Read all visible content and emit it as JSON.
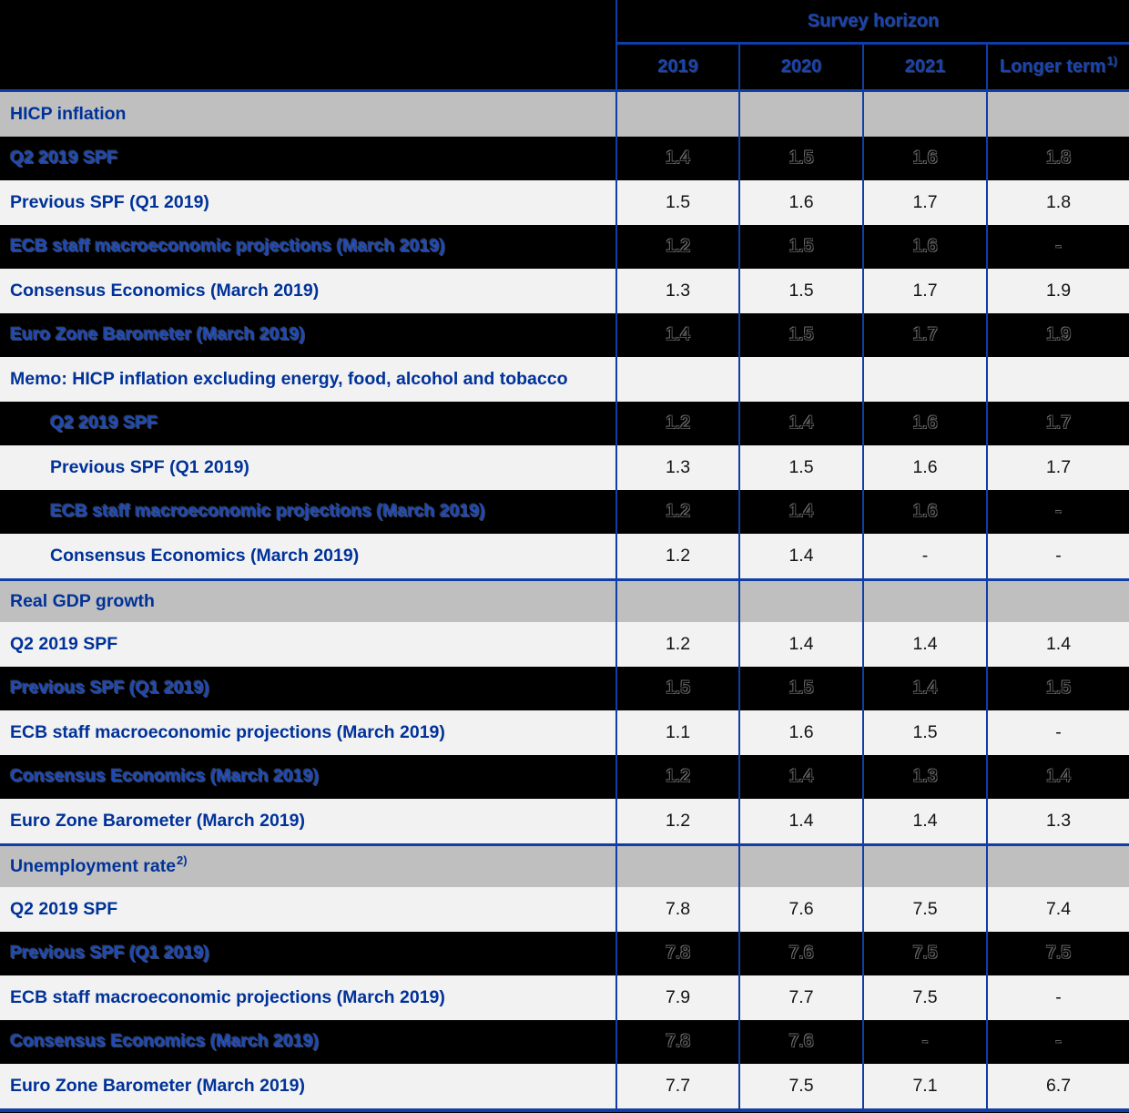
{
  "table_title": "Survey horizon",
  "header": {
    "survey_horizon": "Survey horizon",
    "years": [
      "2019",
      "2020",
      "2021"
    ],
    "longer_term": {
      "label": "Longer term",
      "footnote": "1)"
    }
  },
  "colors": {
    "grid_line_blue": "#103da6",
    "light_row": "#f2f2f2",
    "section_row_gray": "#bfbfbf",
    "label_blue": "#003299",
    "background": "#000000"
  },
  "chart_data": {
    "type": "table",
    "title": "Survey horizon",
    "columns": [
      "2019",
      "2020",
      "2021",
      "Longer term 1)"
    ],
    "sections": [
      {
        "section": "HICP inflation",
        "rows": [
          {
            "label": "Q2 2019 SPF",
            "values": [
              "1.4",
              "1.5",
              "1.6",
              "1.8"
            ]
          },
          {
            "label": "Previous SPF (Q1 2019)",
            "values": [
              "1.5",
              "1.6",
              "1.7",
              "1.8"
            ]
          },
          {
            "label": "ECB staff macroeconomic projections (March 2019)",
            "values": [
              "1.2",
              "1.5",
              "1.6",
              "-"
            ]
          },
          {
            "label": "Consensus Economics (March 2019)",
            "values": [
              "1.3",
              "1.5",
              "1.7",
              "1.9"
            ]
          },
          {
            "label": "Euro Zone Barometer (March 2019)",
            "values": [
              "1.4",
              "1.5",
              "1.7",
              "1.9"
            ]
          }
        ]
      },
      {
        "section": "Memo: HICP inflation excluding energy, food, alcohol and tobacco",
        "rows": [
          {
            "label": "Q2 2019 SPF",
            "values": [
              "1.2",
              "1.4",
              "1.6",
              "1.7"
            ]
          },
          {
            "label": "Previous SPF (Q1 2019)",
            "values": [
              "1.3",
              "1.5",
              "1.6",
              "1.7"
            ]
          },
          {
            "label": "ECB staff macroeconomic projections (March 2019)",
            "values": [
              "1.2",
              "1.4",
              "1.6",
              "-"
            ]
          },
          {
            "label": "Consensus Economics (March 2019)",
            "values": [
              "1.2",
              "1.4",
              "-",
              "-"
            ]
          }
        ]
      },
      {
        "section": "Real GDP growth",
        "rows": [
          {
            "label": "Q2 2019 SPF",
            "values": [
              "1.2",
              "1.4",
              "1.4",
              "1.4"
            ]
          },
          {
            "label": "Previous SPF (Q1 2019)",
            "values": [
              "1.5",
              "1.5",
              "1.4",
              "1.5"
            ]
          },
          {
            "label": "ECB staff macroeconomic projections (March 2019)",
            "values": [
              "1.1",
              "1.6",
              "1.5",
              "-"
            ]
          },
          {
            "label": "Consensus Economics (March 2019)",
            "values": [
              "1.2",
              "1.4",
              "1.3",
              "1.4"
            ]
          },
          {
            "label": "Euro Zone Barometer (March 2019)",
            "values": [
              "1.2",
              "1.4",
              "1.4",
              "1.3"
            ]
          }
        ]
      },
      {
        "section": "Unemployment rate 2)",
        "rows": [
          {
            "label": "Q2 2019 SPF",
            "values": [
              "7.8",
              "7.6",
              "7.5",
              "7.4"
            ]
          },
          {
            "label": "Previous SPF (Q1 2019)",
            "values": [
              "7.8",
              "7.6",
              "7.5",
              "7.5"
            ]
          },
          {
            "label": "ECB staff macroeconomic projections (March 2019)",
            "values": [
              "7.9",
              "7.7",
              "7.5",
              "-"
            ]
          },
          {
            "label": "Consensus Economics (March 2019)",
            "values": [
              "7.8",
              "7.6",
              "-",
              "-"
            ]
          },
          {
            "label": "Euro Zone Barometer (March 2019)",
            "values": [
              "7.7",
              "7.5",
              "7.1",
              "6.7"
            ]
          }
        ]
      }
    ]
  },
  "rows": [
    {
      "kind": "section",
      "bg": "gray",
      "sep": false,
      "indent": false,
      "label": "HICP inflation",
      "sup": "",
      "values": [
        "",
        "",
        "",
        ""
      ]
    },
    {
      "kind": "data",
      "bg": "dark",
      "sep": false,
      "indent": false,
      "label": "Q2 2019 SPF",
      "sup": "",
      "values": [
        "1.4",
        "1.5",
        "1.6",
        "1.8"
      ]
    },
    {
      "kind": "data",
      "bg": "light",
      "sep": false,
      "indent": false,
      "label": "Previous SPF (Q1 2019)",
      "sup": "",
      "values": [
        "1.5",
        "1.6",
        "1.7",
        "1.8"
      ]
    },
    {
      "kind": "data",
      "bg": "dark",
      "sep": false,
      "indent": false,
      "label": "ECB staff macroeconomic projections (March 2019)",
      "sup": "",
      "values": [
        "1.2",
        "1.5",
        "1.6",
        "-"
      ]
    },
    {
      "kind": "data",
      "bg": "light",
      "sep": false,
      "indent": false,
      "label": "Consensus Economics (March 2019)",
      "sup": "",
      "values": [
        "1.3",
        "1.5",
        "1.7",
        "1.9"
      ]
    },
    {
      "kind": "data",
      "bg": "dark",
      "sep": false,
      "indent": false,
      "label": "Euro Zone Barometer (March 2019)",
      "sup": "",
      "values": [
        "1.4",
        "1.5",
        "1.7",
        "1.9"
      ]
    },
    {
      "kind": "memo-header",
      "bg": "light",
      "sep": false,
      "indent": false,
      "label": "Memo: HICP inflation excluding energy, food, alcohol and tobacco",
      "sup": "",
      "values": [
        "",
        "",
        "",
        ""
      ]
    },
    {
      "kind": "data",
      "bg": "dark",
      "sep": false,
      "indent": true,
      "label": "Q2 2019 SPF",
      "sup": "",
      "values": [
        "1.2",
        "1.4",
        "1.6",
        "1.7"
      ]
    },
    {
      "kind": "data",
      "bg": "light",
      "sep": false,
      "indent": true,
      "label": "Previous SPF (Q1 2019)",
      "sup": "",
      "values": [
        "1.3",
        "1.5",
        "1.6",
        "1.7"
      ]
    },
    {
      "kind": "data",
      "bg": "dark",
      "sep": false,
      "indent": true,
      "label": "ECB staff macroeconomic projections (March 2019)",
      "sup": "",
      "values": [
        "1.2",
        "1.4",
        "1.6",
        "-"
      ]
    },
    {
      "kind": "data",
      "bg": "light",
      "sep": false,
      "indent": true,
      "label": "Consensus Economics (March 2019)",
      "sup": "",
      "values": [
        "1.2",
        "1.4",
        "-",
        "-"
      ]
    },
    {
      "kind": "section",
      "bg": "gray",
      "sep": true,
      "indent": false,
      "label": "Real GDP growth",
      "sup": "",
      "values": [
        "",
        "",
        "",
        ""
      ]
    },
    {
      "kind": "data",
      "bg": "light",
      "sep": false,
      "indent": false,
      "label": "Q2 2019 SPF",
      "sup": "",
      "values": [
        "1.2",
        "1.4",
        "1.4",
        "1.4"
      ]
    },
    {
      "kind": "data",
      "bg": "dark",
      "sep": false,
      "indent": false,
      "label": "Previous SPF (Q1 2019)",
      "sup": "",
      "values": [
        "1.5",
        "1.5",
        "1.4",
        "1.5"
      ]
    },
    {
      "kind": "data",
      "bg": "light",
      "sep": false,
      "indent": false,
      "label": "ECB staff macroeconomic projections (March 2019)",
      "sup": "",
      "values": [
        "1.1",
        "1.6",
        "1.5",
        "-"
      ]
    },
    {
      "kind": "data",
      "bg": "dark",
      "sep": false,
      "indent": false,
      "label": "Consensus Economics (March 2019)",
      "sup": "",
      "values": [
        "1.2",
        "1.4",
        "1.3",
        "1.4"
      ]
    },
    {
      "kind": "data",
      "bg": "light",
      "sep": false,
      "indent": false,
      "label": "Euro Zone Barometer (March 2019)",
      "sup": "",
      "values": [
        "1.2",
        "1.4",
        "1.4",
        "1.3"
      ]
    },
    {
      "kind": "section",
      "bg": "gray",
      "sep": true,
      "indent": false,
      "label": "Unemployment rate",
      "sup": "2)",
      "values": [
        "",
        "",
        "",
        ""
      ]
    },
    {
      "kind": "data",
      "bg": "light",
      "sep": false,
      "indent": false,
      "label": "Q2 2019 SPF",
      "sup": "",
      "values": [
        "7.8",
        "7.6",
        "7.5",
        "7.4"
      ]
    },
    {
      "kind": "data",
      "bg": "dark",
      "sep": false,
      "indent": false,
      "label": "Previous SPF (Q1 2019)",
      "sup": "",
      "values": [
        "7.8",
        "7.6",
        "7.5",
        "7.5"
      ]
    },
    {
      "kind": "data",
      "bg": "light",
      "sep": false,
      "indent": false,
      "label": "ECB staff macroeconomic projections (March 2019)",
      "sup": "",
      "values": [
        "7.9",
        "7.7",
        "7.5",
        "-"
      ]
    },
    {
      "kind": "data",
      "bg": "dark",
      "sep": false,
      "indent": false,
      "label": "Consensus Economics (March 2019)",
      "sup": "",
      "values": [
        "7.8",
        "7.6",
        "-",
        "-"
      ]
    },
    {
      "kind": "data",
      "bg": "light",
      "sep": false,
      "indent": false,
      "label": "Euro Zone Barometer (March 2019)",
      "sup": "",
      "values": [
        "7.7",
        "7.5",
        "7.1",
        "6.7"
      ]
    }
  ]
}
